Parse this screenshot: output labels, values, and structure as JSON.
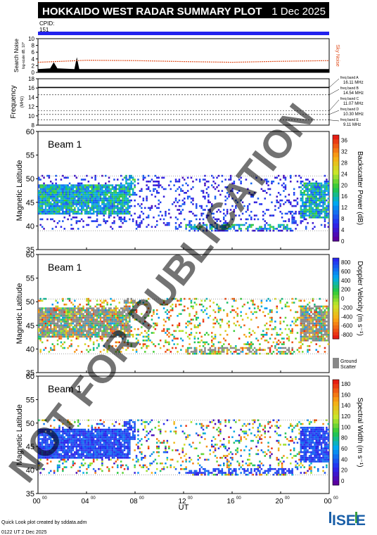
{
  "header": {
    "title": "HOKKAIDO WEST RADAR SUMMARY PLOT",
    "date": "1 Dec 2025",
    "cpid_label": "CPID:",
    "cpid_value": "151"
  },
  "colors": {
    "header_bg": "#000000",
    "header_text": "#ffffff",
    "cpid_bar": "#2222ee",
    "noise_line": "#e05020",
    "noise_fill": "#000000",
    "ground_scatter": "#888888"
  },
  "watermark": "NOT FOR PUBLICATION",
  "footer": {
    "credit": "Quick Look plot created by sddata.adm",
    "timestamp": "0122 UT  2 Dec 2025",
    "logo_text": "ISEE"
  },
  "chart_data": [
    {
      "panel": "noise",
      "type": "area",
      "ylabel": "Search Noise",
      "ylabel_sub": "log-scale dB, 10^",
      "yticks": [
        0,
        2,
        4,
        6,
        8,
        10
      ],
      "ylim": [
        0,
        10
      ],
      "series": [
        {
          "name": "Sky Noise",
          "color": "#e05020"
        }
      ],
      "search_noise": [
        {
          "x": 0.0,
          "y": 1.0
        },
        {
          "x": 1.0,
          "y": 1.2
        },
        {
          "x": 1.3,
          "y": 3.0
        },
        {
          "x": 1.6,
          "y": 1.2
        },
        {
          "x": 3.0,
          "y": 1.0
        },
        {
          "x": 3.2,
          "y": 4.5
        },
        {
          "x": 3.4,
          "y": 1.0
        },
        {
          "x": 24.0,
          "y": 1.0
        }
      ],
      "sky_noise": [
        {
          "x": 0.0,
          "y": 3.0
        },
        {
          "x": 4.0,
          "y": 3.6
        },
        {
          "x": 8.0,
          "y": 3.5
        },
        {
          "x": 12.0,
          "y": 3.2
        },
        {
          "x": 16.0,
          "y": 3.0
        },
        {
          "x": 20.0,
          "y": 3.3
        },
        {
          "x": 24.0,
          "y": 3.5
        }
      ]
    },
    {
      "panel": "frequency",
      "type": "line",
      "ylabel": "Frequency",
      "yunit": "(MHz)",
      "yticks": [
        8,
        10,
        12,
        14,
        16,
        18
      ],
      "ylim": [
        8,
        18
      ],
      "bands": [
        {
          "label": "freq band A",
          "value": "16.11 MHz",
          "mhz": 16.11
        },
        {
          "label": "freq band B",
          "value": "14.54 MHz",
          "mhz": 14.54
        },
        {
          "label": "freq band C",
          "value": "11.07 MHz",
          "mhz": 11.07
        },
        {
          "label": "freq band D",
          "value": "10.30 MHz",
          "mhz": 10.3
        },
        {
          "label": "freq band E",
          "value": "9.11 MHz",
          "mhz": 9.11
        }
      ],
      "operating_mhz": 16.11
    },
    {
      "panel": "power",
      "type": "heatmap",
      "beam_label": "Beam  1",
      "ylabel": "Magnetic Latitude",
      "yticks": [
        35,
        40,
        45,
        50,
        55,
        60
      ],
      "ylim": [
        35,
        60
      ],
      "colorbar_label": "Backscatter Power (dB)",
      "colorbar_ticks": [
        "0",
        "4",
        "8",
        "12",
        "16",
        "20",
        "24",
        "28",
        "32",
        "36"
      ],
      "colorbar_range": [
        0,
        38
      ]
    },
    {
      "panel": "velocity",
      "type": "heatmap",
      "beam_label": "Beam  1",
      "ylabel": "Magnetic Latitude",
      "yticks": [
        35,
        40,
        45,
        50,
        55,
        60
      ],
      "ylim": [
        35,
        60
      ],
      "colorbar_label": "Doppler Velocity (m s⁻¹)",
      "colorbar_ticks": [
        "800",
        "600",
        "400",
        "200",
        "0",
        "-200",
        "-400",
        "-600",
        "-800"
      ],
      "colorbar_range": [
        -900,
        900
      ],
      "ground_scatter_label": "Ground Scatter"
    },
    {
      "panel": "width",
      "type": "heatmap",
      "beam_label": "Beam  1",
      "ylabel": "Magnetic Latitude",
      "yticks": [
        35,
        40,
        45,
        50,
        55,
        60
      ],
      "ylim": [
        35,
        60
      ],
      "colorbar_label": "Spectral Width (m s⁻¹)",
      "colorbar_ticks": [
        "180",
        "160",
        "140",
        "120",
        "100",
        "80",
        "60",
        "40",
        "20",
        "0"
      ],
      "colorbar_range": [
        0,
        190
      ],
      "xlabel": "UT",
      "xticks": [
        "00",
        "04",
        "08",
        "12",
        "16",
        "20",
        "00"
      ],
      "xtick_sup": "00",
      "xlim": [
        0,
        24
      ]
    }
  ]
}
